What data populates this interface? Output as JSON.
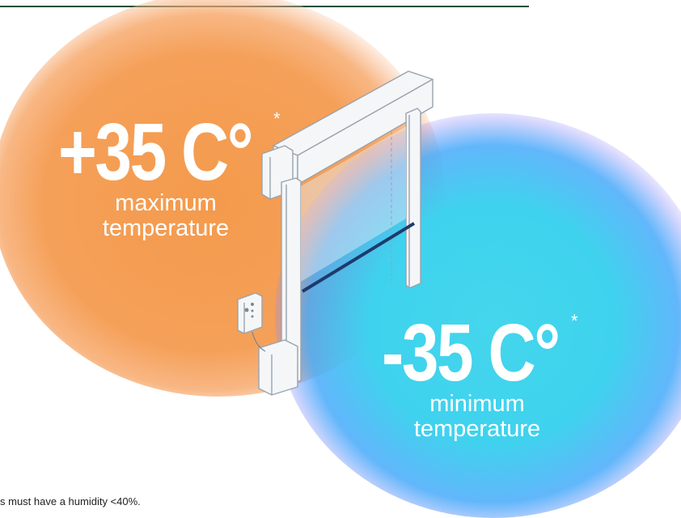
{
  "max": {
    "value": "+35 C°",
    "asterisk": "*",
    "label_line1": "maximum",
    "label_line2": "temperature"
  },
  "min": {
    "value": "-35 C°",
    "asterisk": "*",
    "label_line1": "minimum",
    "label_line2": "temperature"
  },
  "footnote": "s must have a humidity <40%.",
  "colors": {
    "warm": "#f49a4c",
    "cold": "#44d6ec",
    "rule": "#1f4d3a"
  },
  "illustration": "rolling-door-icon"
}
